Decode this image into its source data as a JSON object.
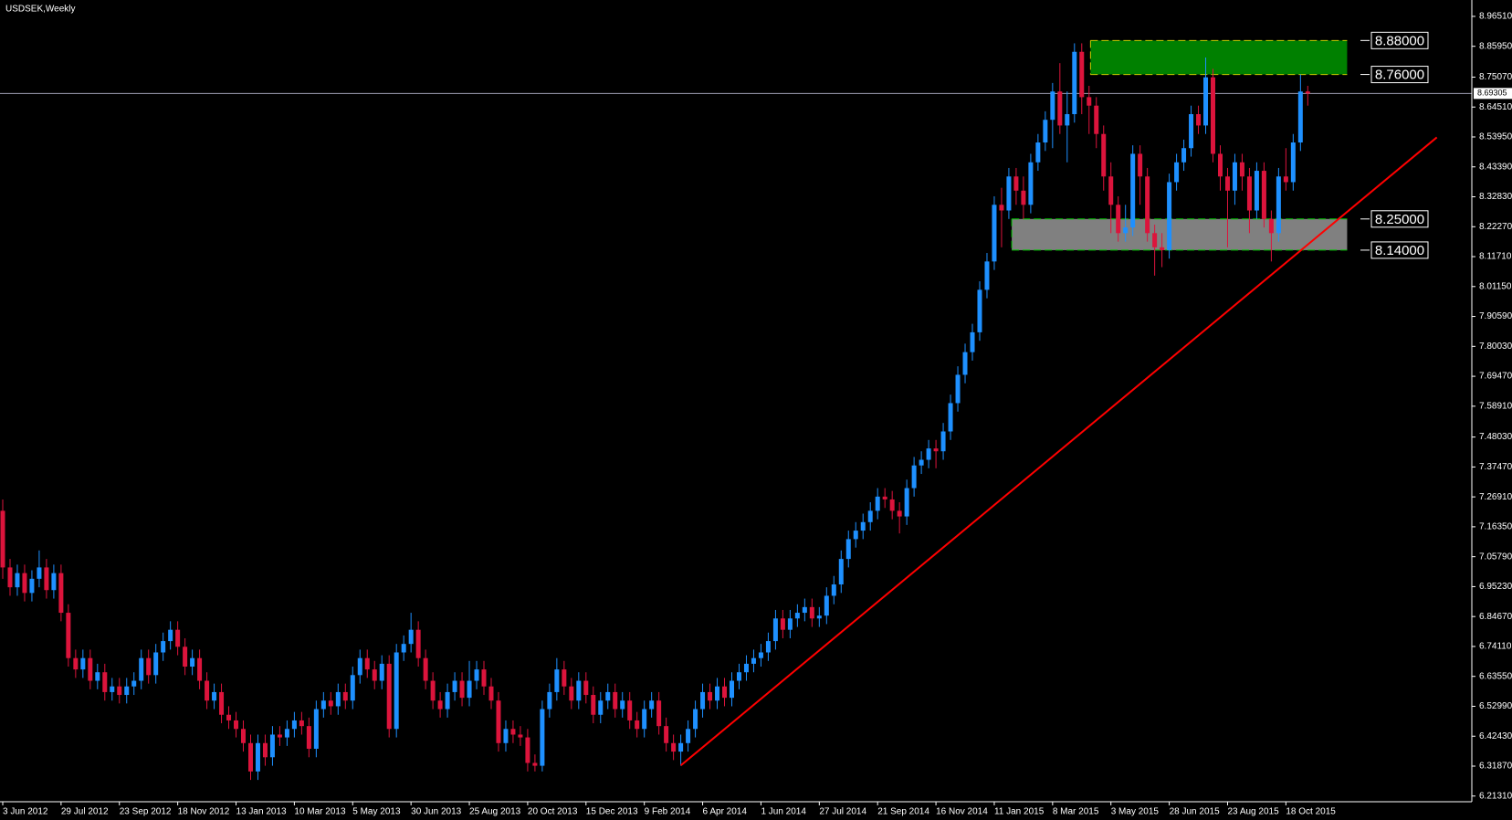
{
  "chart_data": {
    "type": "candlestick",
    "title": "USDSEK,Weekly",
    "categories": [
      "3 Jun 2012",
      null,
      null,
      null,
      null,
      null,
      null,
      null,
      "29 Jul 2012",
      null,
      null,
      null,
      null,
      null,
      null,
      null,
      "23 Sep 2012",
      null,
      null,
      null,
      null,
      null,
      null,
      null,
      "18 Nov 2012",
      null,
      null,
      null,
      null,
      null,
      null,
      null,
      "13 Jan 2013",
      null,
      null,
      null,
      null,
      null,
      null,
      null,
      "10 Mar 2013",
      null,
      null,
      null,
      null,
      null,
      null,
      null,
      "5 May 2013",
      null,
      null,
      null,
      null,
      null,
      null,
      null,
      "30 Jun 2013",
      null,
      null,
      null,
      null,
      null,
      null,
      null,
      "25 Aug 2013",
      null,
      null,
      null,
      null,
      null,
      null,
      null,
      "20 Oct 2013",
      null,
      null,
      null,
      null,
      null,
      null,
      null,
      "15 Dec 2013",
      null,
      null,
      null,
      null,
      null,
      null,
      null,
      "9 Feb 2014",
      null,
      null,
      null,
      null,
      null,
      null,
      null,
      "6 Apr 2014",
      null,
      null,
      null,
      null,
      null,
      null,
      null,
      "1 Jun 2014",
      null,
      null,
      null,
      null,
      null,
      null,
      null,
      "27 Jul 2014",
      null,
      null,
      null,
      null,
      null,
      null,
      null,
      "21 Sep 2014",
      null,
      null,
      null,
      null,
      null,
      null,
      null,
      "16 Nov 2014",
      null,
      null,
      null,
      null,
      null,
      null,
      null,
      "11 Jan 2015",
      null,
      null,
      null,
      null,
      null,
      null,
      null,
      "8 Mar 2015",
      null,
      null,
      null,
      null,
      null,
      null,
      null,
      "3 May 2015",
      null,
      null,
      null,
      null,
      null,
      null,
      null,
      "28 Jun 2015",
      null,
      null,
      null,
      null,
      null,
      null,
      null,
      "23 Aug 2015",
      null,
      null,
      null,
      null,
      null,
      null,
      null,
      "18 Oct 2015",
      null,
      null,
      null
    ],
    "open": [
      7.22,
      7.02,
      6.95,
      7.0,
      6.93,
      6.98,
      7.02,
      6.94,
      7.0,
      6.86,
      6.7,
      6.66,
      6.7,
      6.62,
      6.65,
      6.58,
      6.6,
      6.57,
      6.6,
      6.62,
      6.7,
      6.64,
      6.72,
      6.76,
      6.8,
      6.74,
      6.67,
      6.7,
      6.62,
      6.55,
      6.58,
      6.5,
      6.48,
      6.45,
      6.4,
      6.3,
      6.4,
      6.35,
      6.43,
      6.42,
      6.45,
      6.48,
      6.46,
      6.38,
      6.52,
      6.55,
      6.53,
      6.58,
      6.55,
      6.64,
      6.7,
      6.66,
      6.62,
      6.68,
      6.45,
      6.72,
      6.75,
      6.8,
      6.7,
      6.62,
      6.55,
      6.52,
      6.58,
      6.62,
      6.56,
      6.62,
      6.66,
      6.6,
      6.55,
      6.4,
      6.45,
      6.43,
      6.42,
      6.33,
      6.32,
      6.52,
      6.58,
      6.66,
      6.6,
      6.55,
      6.62,
      6.57,
      6.5,
      6.55,
      6.58,
      6.52,
      6.55,
      6.48,
      6.45,
      6.52,
      6.55,
      6.46,
      6.4,
      6.37,
      6.4,
      6.45,
      6.52,
      6.58,
      6.55,
      6.6,
      6.56,
      6.62,
      6.65,
      6.68,
      6.7,
      6.72,
      6.76,
      6.84,
      6.8,
      6.84,
      6.86,
      6.88,
      6.84,
      6.85,
      6.92,
      6.96,
      7.05,
      7.12,
      7.15,
      7.18,
      7.22,
      7.27,
      7.26,
      7.22,
      7.2,
      7.3,
      7.38,
      7.4,
      7.44,
      7.43,
      7.5,
      7.6,
      7.7,
      7.78,
      7.85,
      8.0,
      8.1,
      8.3,
      8.28,
      8.4,
      8.35,
      8.3,
      8.45,
      8.52,
      8.6,
      8.7,
      8.58,
      8.62,
      8.84,
      8.68,
      8.65,
      8.55,
      8.4,
      8.3,
      8.2,
      8.22,
      8.48,
      8.4,
      8.2,
      8.15,
      8.14,
      8.38,
      8.45,
      8.5,
      8.62,
      8.58,
      8.75,
      8.48,
      8.4,
      8.35,
      8.45,
      8.4,
      8.28,
      8.42,
      8.25,
      8.2,
      8.4,
      8.38,
      8.52,
      8.7
    ],
    "high": [
      7.26,
      7.05,
      7.03,
      7.03,
      7.01,
      7.08,
      7.05,
      7.03,
      7.03,
      6.89,
      6.73,
      6.73,
      6.73,
      6.68,
      6.68,
      6.63,
      6.63,
      6.63,
      6.65,
      6.73,
      6.73,
      6.75,
      6.79,
      6.83,
      6.83,
      6.77,
      6.73,
      6.73,
      6.65,
      6.61,
      6.61,
      6.53,
      6.51,
      6.48,
      6.43,
      6.43,
      6.43,
      6.46,
      6.46,
      6.48,
      6.51,
      6.51,
      6.49,
      6.55,
      6.58,
      6.58,
      6.61,
      6.61,
      6.67,
      6.73,
      6.73,
      6.69,
      6.71,
      6.71,
      6.75,
      6.78,
      6.86,
      6.83,
      6.73,
      6.65,
      6.58,
      6.61,
      6.65,
      6.65,
      6.69,
      6.69,
      6.69,
      6.63,
      6.58,
      6.48,
      6.48,
      6.46,
      6.45,
      6.36,
      6.55,
      6.61,
      6.7,
      6.69,
      6.63,
      6.65,
      6.65,
      6.6,
      6.58,
      6.61,
      6.61,
      6.58,
      6.58,
      6.51,
      6.55,
      6.58,
      6.58,
      6.49,
      6.43,
      6.43,
      6.48,
      6.55,
      6.61,
      6.61,
      6.63,
      6.63,
      6.65,
      6.68,
      6.71,
      6.73,
      6.75,
      6.79,
      6.87,
      6.87,
      6.87,
      6.89,
      6.91,
      6.91,
      6.88,
      6.95,
      6.99,
      7.08,
      7.15,
      7.18,
      7.21,
      7.25,
      7.3,
      7.3,
      7.29,
      7.25,
      7.33,
      7.41,
      7.43,
      7.47,
      7.47,
      7.53,
      7.63,
      7.73,
      7.81,
      7.88,
      8.03,
      8.13,
      8.33,
      8.36,
      8.43,
      8.43,
      8.4,
      8.48,
      8.55,
      8.63,
      8.73,
      8.8,
      8.7,
      8.87,
      8.87,
      8.72,
      8.68,
      8.58,
      8.45,
      8.33,
      8.3,
      8.51,
      8.51,
      8.43,
      8.23,
      8.2,
      8.41,
      8.48,
      8.53,
      8.65,
      8.65,
      8.82,
      8.78,
      8.51,
      8.43,
      8.48,
      8.48,
      8.43,
      8.45,
      8.45,
      8.28,
      8.43,
      8.5,
      8.55,
      8.76,
      8.72
    ],
    "low": [
      6.98,
      6.92,
      6.92,
      6.9,
      6.9,
      6.95,
      6.91,
      6.91,
      6.83,
      6.67,
      6.63,
      6.63,
      6.59,
      6.59,
      6.55,
      6.55,
      6.54,
      6.54,
      6.57,
      6.59,
      6.61,
      6.61,
      6.69,
      6.73,
      6.71,
      6.64,
      6.64,
      6.59,
      6.52,
      6.52,
      6.47,
      6.45,
      6.42,
      6.37,
      6.27,
      6.27,
      6.32,
      6.32,
      6.39,
      6.39,
      6.42,
      6.43,
      6.35,
      6.35,
      6.49,
      6.5,
      6.5,
      6.52,
      6.52,
      6.61,
      6.63,
      6.59,
      6.59,
      6.42,
      6.42,
      6.69,
      6.72,
      6.67,
      6.59,
      6.52,
      6.49,
      6.49,
      6.55,
      6.53,
      6.53,
      6.59,
      6.57,
      6.52,
      6.37,
      6.37,
      6.4,
      6.39,
      6.3,
      6.3,
      6.3,
      6.49,
      6.55,
      6.57,
      6.52,
      6.52,
      6.54,
      6.47,
      6.47,
      6.52,
      6.49,
      6.49,
      6.45,
      6.42,
      6.42,
      6.49,
      6.43,
      6.37,
      6.34,
      6.32,
      6.37,
      6.42,
      6.49,
      6.52,
      6.52,
      6.53,
      6.53,
      6.59,
      6.62,
      6.65,
      6.67,
      6.69,
      6.73,
      6.77,
      6.77,
      6.81,
      6.83,
      6.81,
      6.81,
      6.82,
      6.89,
      6.93,
      7.02,
      7.09,
      7.12,
      7.15,
      7.19,
      7.23,
      7.19,
      7.14,
      7.17,
      7.27,
      7.35,
      7.37,
      7.37,
      7.4,
      7.47,
      7.57,
      7.67,
      7.75,
      7.82,
      7.97,
      8.07,
      8.15,
      8.25,
      8.3,
      8.25,
      8.27,
      8.42,
      8.49,
      8.5,
      8.55,
      8.45,
      8.59,
      8.62,
      8.55,
      8.5,
      8.35,
      8.2,
      8.17,
      8.17,
      8.19,
      8.3,
      8.17,
      8.05,
      8.08,
      8.11,
      8.35,
      8.42,
      8.47,
      8.55,
      8.55,
      8.45,
      8.35,
      8.15,
      8.3,
      8.35,
      8.2,
      8.25,
      8.22,
      8.1,
      8.17,
      8.35,
      8.35,
      8.49,
      8.65
    ],
    "close": [
      7.02,
      6.95,
      7.0,
      6.93,
      6.98,
      7.02,
      6.94,
      7.0,
      6.86,
      6.7,
      6.66,
      6.7,
      6.62,
      6.65,
      6.58,
      6.6,
      6.57,
      6.6,
      6.62,
      6.7,
      6.64,
      6.72,
      6.76,
      6.8,
      6.74,
      6.67,
      6.7,
      6.62,
      6.55,
      6.58,
      6.5,
      6.48,
      6.45,
      6.4,
      6.3,
      6.4,
      6.35,
      6.43,
      6.42,
      6.45,
      6.48,
      6.46,
      6.38,
      6.52,
      6.55,
      6.53,
      6.58,
      6.55,
      6.64,
      6.7,
      6.66,
      6.62,
      6.68,
      6.45,
      6.72,
      6.75,
      6.8,
      6.7,
      6.62,
      6.55,
      6.52,
      6.58,
      6.62,
      6.56,
      6.62,
      6.66,
      6.6,
      6.55,
      6.4,
      6.45,
      6.43,
      6.42,
      6.33,
      6.32,
      6.52,
      6.58,
      6.66,
      6.6,
      6.55,
      6.62,
      6.57,
      6.5,
      6.55,
      6.58,
      6.52,
      6.55,
      6.48,
      6.45,
      6.52,
      6.55,
      6.46,
      6.4,
      6.37,
      6.4,
      6.45,
      6.52,
      6.58,
      6.55,
      6.6,
      6.56,
      6.62,
      6.65,
      6.68,
      6.7,
      6.72,
      6.76,
      6.84,
      6.8,
      6.84,
      6.86,
      6.88,
      6.84,
      6.85,
      6.92,
      6.96,
      7.05,
      7.12,
      7.15,
      7.18,
      7.22,
      7.27,
      7.26,
      7.22,
      7.2,
      7.3,
      7.38,
      7.4,
      7.44,
      7.43,
      7.5,
      7.6,
      7.7,
      7.78,
      7.85,
      8.0,
      8.1,
      8.3,
      8.28,
      8.4,
      8.35,
      8.3,
      8.45,
      8.52,
      8.6,
      8.7,
      8.58,
      8.62,
      8.84,
      8.68,
      8.65,
      8.55,
      8.4,
      8.3,
      8.2,
      8.22,
      8.48,
      8.4,
      8.2,
      8.15,
      8.14,
      8.38,
      8.45,
      8.5,
      8.62,
      8.58,
      8.75,
      8.48,
      8.4,
      8.35,
      8.45,
      8.4,
      8.28,
      8.42,
      8.25,
      8.2,
      8.4,
      8.38,
      8.52,
      8.7,
      8.693
    ],
    "up_color": "#1e90ff",
    "down_color": "#dc143c",
    "ylim": [
      6.193,
      9.01
    ],
    "yticks": [
      {
        "value": 8.9651,
        "label": "8.96510"
      },
      {
        "value": 8.8595,
        "label": "8.85950"
      },
      {
        "value": 8.7507,
        "label": "8.75070"
      },
      {
        "value": 8.6451,
        "label": "8.64510"
      },
      {
        "value": 8.5395,
        "label": "8.53950"
      },
      {
        "value": 8.4339,
        "label": "8.43390"
      },
      {
        "value": 8.3283,
        "label": "8.32830"
      },
      {
        "value": 8.2227,
        "label": "8.22270"
      },
      {
        "value": 8.1171,
        "label": "8.11710"
      },
      {
        "value": 8.0115,
        "label": "8.01150"
      },
      {
        "value": 7.9059,
        "label": "7.90590"
      },
      {
        "value": 7.8003,
        "label": "7.80030"
      },
      {
        "value": 7.6947,
        "label": "7.69470"
      },
      {
        "value": 7.5891,
        "label": "7.58910"
      },
      {
        "value": 7.4803,
        "label": "7.48030"
      },
      {
        "value": 7.3747,
        "label": "7.37470"
      },
      {
        "value": 7.2691,
        "label": "7.26910"
      },
      {
        "value": 7.1635,
        "label": "7.16350"
      },
      {
        "value": 7.0579,
        "label": "7.05790"
      },
      {
        "value": 6.9523,
        "label": "6.95230"
      },
      {
        "value": 6.8467,
        "label": "6.84670"
      },
      {
        "value": 6.7411,
        "label": "6.74110"
      },
      {
        "value": 6.6355,
        "label": "6.63550"
      },
      {
        "value": 6.5299,
        "label": "6.52990"
      },
      {
        "value": 6.4243,
        "label": "6.42430"
      },
      {
        "value": 6.3187,
        "label": "6.31870"
      },
      {
        "value": 6.2131,
        "label": "6.21310"
      }
    ],
    "last_price": {
      "value": 8.69305,
      "label": "8.69305"
    },
    "zones": [
      {
        "from": 8.76,
        "to": 8.88,
        "x_range": [
          149.2,
          184.4
        ],
        "color": "#008000",
        "border_color": "#c8c800"
      },
      {
        "from": 8.14,
        "to": 8.25,
        "x_range": [
          138.4,
          184.4
        ],
        "color": "#808080",
        "border_color": "#00c800"
      }
    ],
    "levels": [
      {
        "value": 8.88,
        "label": "8.88000"
      },
      {
        "value": 8.76,
        "label": "8.76000"
      },
      {
        "value": 8.25,
        "label": "8.25000"
      },
      {
        "value": 8.14,
        "label": "8.14000"
      }
    ],
    "trendline": {
      "x": [
        93,
        196.7
      ],
      "y": [
        6.321,
        8.538
      ],
      "color": "#ff0000"
    }
  }
}
